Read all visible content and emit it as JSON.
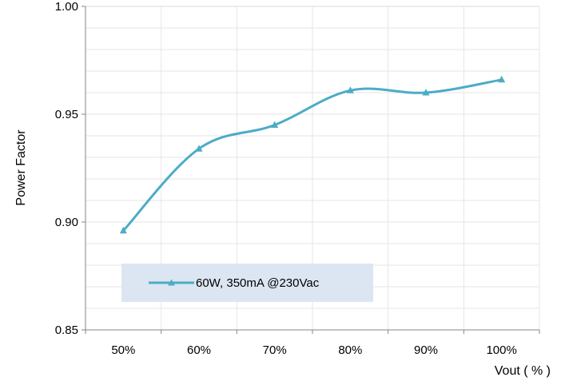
{
  "chart_data": {
    "type": "line",
    "categories": [
      "50%",
      "60%",
      "70%",
      "80%",
      "90%",
      "100%"
    ],
    "series": [
      {
        "name": "60W, 350mA @230Vac",
        "values": [
          0.896,
          0.934,
          0.945,
          0.961,
          0.96,
          0.966
        ],
        "color": "#4bacc6",
        "marker": "triangle"
      }
    ],
    "ylim": [
      0.85,
      1.0
    ],
    "y_ticks": [
      "0.85",
      "0.90",
      "0.95",
      "1.00"
    ],
    "xlabel": "Vout ( % )",
    "ylabel": "Power Factor",
    "grid": true,
    "legend_position": "bottom-left inside",
    "legend_background": "#dce6f2",
    "smooth": true
  }
}
